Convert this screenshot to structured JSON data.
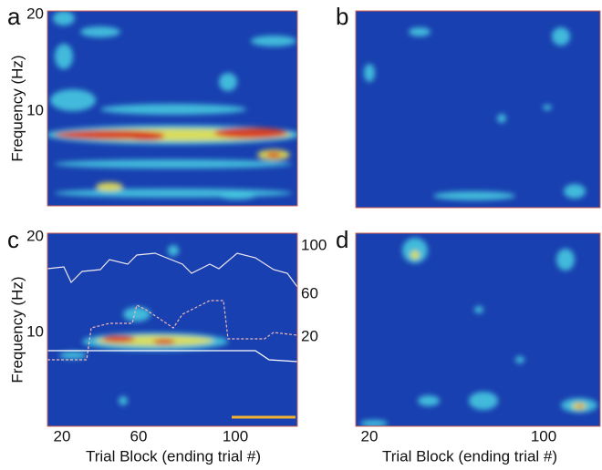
{
  "panels": [
    {
      "letter": "a"
    },
    {
      "letter": "b"
    },
    {
      "letter": "c"
    },
    {
      "letter": "d"
    }
  ],
  "y_axis": {
    "label": "Frequency (Hz)",
    "ticks": [
      20,
      10
    ]
  },
  "right_axis": {
    "ticks": [
      100,
      60,
      20
    ]
  },
  "x_axis": {
    "label": "Trial Block (ending trial #)",
    "ticks": [
      20,
      60,
      100
    ]
  }
}
